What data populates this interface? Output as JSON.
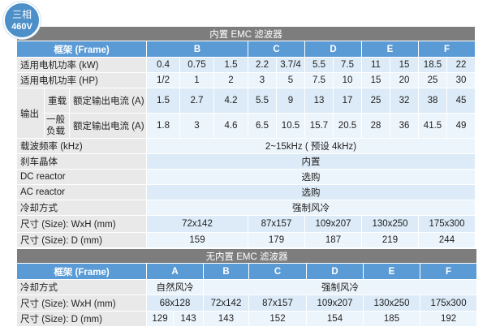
{
  "badge": {
    "line1": "三相",
    "line2": "460V"
  },
  "with_emc": {
    "title": "内置 EMC 滤波器",
    "frame_label": "框架 (Frame)",
    "frames": [
      {
        "name": "B",
        "span": 3
      },
      {
        "name": "C",
        "span": 2
      },
      {
        "name": "D",
        "span": 2
      },
      {
        "name": "E",
        "span": 2
      },
      {
        "name": "F",
        "span": 2
      }
    ],
    "kw": {
      "label": "适用电机功率 (kW)",
      "values": [
        "0.4",
        "0.75",
        "1.5",
        "2.2",
        "3.7/4",
        "5.5",
        "7.5",
        "11",
        "15",
        "18.5",
        "22"
      ]
    },
    "hp": {
      "label": "适用电机功率 (HP)",
      "values": [
        "1/2",
        "1",
        "2",
        "3",
        "5",
        "7.5",
        "10",
        "15",
        "20",
        "25",
        "30"
      ]
    },
    "output": {
      "label": "输出",
      "heavy": {
        "label": "重载",
        "sub": "额定输出电流 (A)",
        "values": [
          "1.5",
          "2.7",
          "4.2",
          "5.5",
          "9",
          "13",
          "17",
          "25",
          "32",
          "38",
          "45"
        ]
      },
      "normal": {
        "label": "一般负载",
        "sub": "额定输出电流 (A)",
        "values": [
          "1.8",
          "3",
          "4.6",
          "6.5",
          "10.5",
          "15.7",
          "20.5",
          "28",
          "36",
          "41.5",
          "49"
        ]
      }
    },
    "spans": [
      {
        "label": "载波频率 (kHz)",
        "value": "2~15kHz ( 预设 4kHz)"
      },
      {
        "label": "刹车晶体",
        "value": "内置"
      },
      {
        "label": "DC reactor",
        "value": "选购"
      },
      {
        "label": "AC reactor",
        "value": "选购"
      },
      {
        "label": "冷却方式",
        "value": "强制风冷"
      }
    ],
    "size_wxh": {
      "label": "尺寸 (Size): WxH (mm)",
      "values": [
        "72x142",
        "87x157",
        "109x207",
        "130x250",
        "175x300"
      ]
    },
    "size_d": {
      "label": "尺寸 (Size): D (mm)",
      "values": [
        "159",
        "179",
        "187",
        "219",
        "244"
      ]
    }
  },
  "without_emc": {
    "title": "无内置 EMC 滤波器",
    "frame_label": "框架 (Frame)",
    "frames": [
      "A",
      "B",
      "C",
      "D",
      "E",
      "F"
    ],
    "cooling": {
      "label": "冷却方式",
      "natural": "自然风冷",
      "forced": "强制风冷"
    },
    "size_wxh": {
      "label": "尺寸 (Size): WxH (mm)",
      "values": [
        "68x128",
        "72x142",
        "87x157",
        "109x207",
        "130x250",
        "175x300"
      ]
    },
    "size_d": {
      "label": "尺寸 (Size): D (mm)",
      "values": [
        "129",
        "143",
        "143",
        "152",
        "154",
        "185",
        "192"
      ]
    }
  },
  "colors": {
    "header_blue": "#5b9bd5",
    "section_gray": "#7d7d7d",
    "badge_blue": "#4d8fc9"
  }
}
